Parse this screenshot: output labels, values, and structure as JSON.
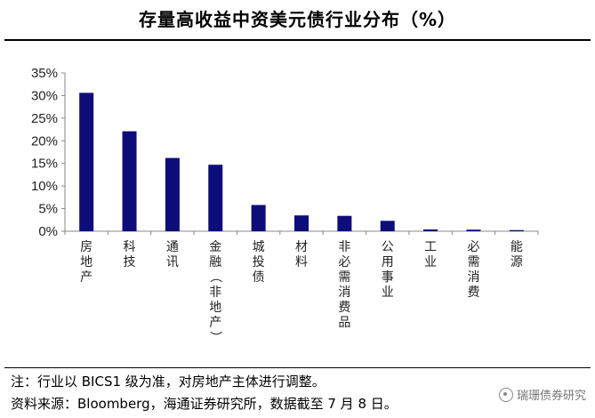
{
  "header": {
    "title": "存量高收益中资美元债行业分布（%）"
  },
  "footer": {
    "note": "注：行业以 BICS1 级为准，对房地产主体进行调整。",
    "source": "资料来源：Bloomberg，海通证券研究所，数据截至 7 月 8 日。",
    "watermark": "瑞珊债券研究"
  },
  "chart_data": {
    "type": "bar",
    "title": "存量高收益中资美元债行业分布（%）",
    "xlabel": "",
    "ylabel": "",
    "ylim": [
      0,
      35
    ],
    "yticks": [
      "0%",
      "5%",
      "10%",
      "15%",
      "20%",
      "25%",
      "30%",
      "35%"
    ],
    "categories": [
      "房地产",
      "科技",
      "通讯",
      "金融（非地产）",
      "城投债",
      "材料",
      "非必需消费品",
      "公用事业",
      "工业",
      "必需消费",
      "能源"
    ],
    "values": [
      30.6,
      22.1,
      16.2,
      14.7,
      5.8,
      3.5,
      3.4,
      2.3,
      0.4,
      0.35,
      0.25
    ],
    "bar_color": "#0d0d7a",
    "grid": false,
    "legend": "none"
  }
}
